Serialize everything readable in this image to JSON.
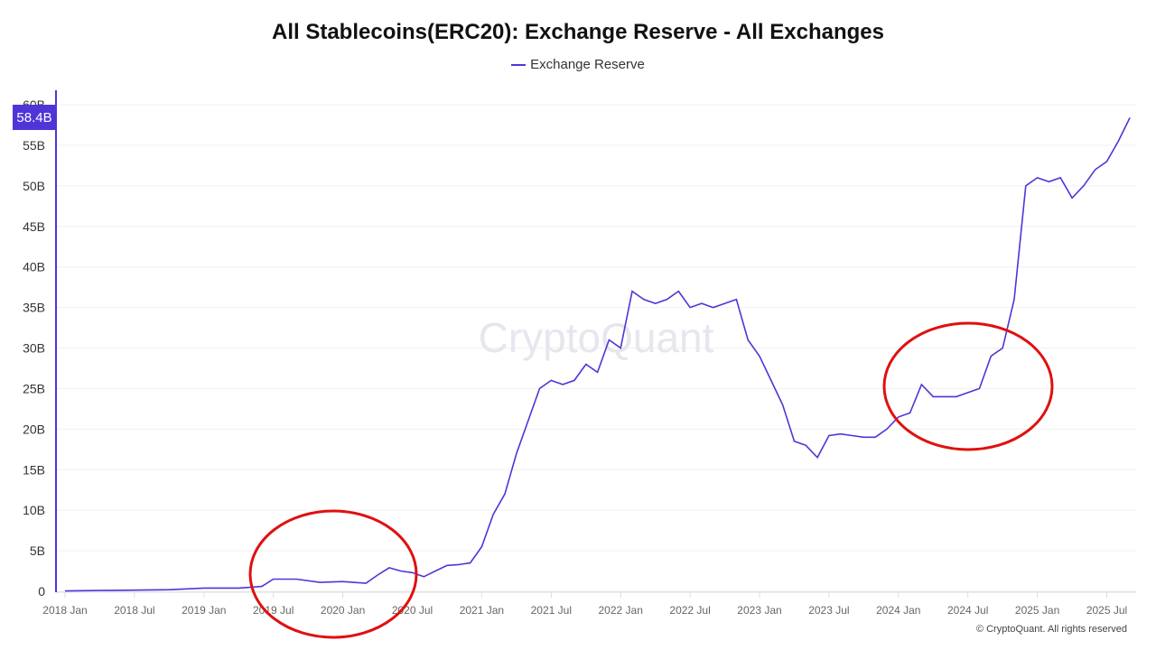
{
  "chart_data": {
    "type": "line",
    "title": "All Stablecoins(ERC20): Exchange Reserve - All Exchanges",
    "xlabel": "",
    "ylabel": "",
    "legend_position": "top-center",
    "grid": true,
    "ylim": [
      0,
      60
    ],
    "y_ticks": [
      "0",
      "5B",
      "10B",
      "15B",
      "20B",
      "25B",
      "30B",
      "35B",
      "40B",
      "45B",
      "50B",
      "55B",
      "60B"
    ],
    "x_ticks": [
      "2018 Jan",
      "2018 Jul",
      "2019 Jan",
      "2019 Jul",
      "2020 Jan",
      "2020 Jul",
      "2021 Jan",
      "2021 Jul",
      "2022 Jan",
      "2022 Jul",
      "2023 Jan",
      "2023 Jul",
      "2024 Jan",
      "2024 Jul",
      "2025 Jan",
      "2025 Jul"
    ],
    "current_value_label": "58.4B",
    "series": [
      {
        "name": "Exchange Reserve",
        "color": "#4f35d8",
        "unit": "B",
        "x": [
          "2018-01",
          "2018-04",
          "2018-07",
          "2018-10",
          "2019-01",
          "2019-04",
          "2019-06",
          "2019-07",
          "2019-09",
          "2019-11",
          "2020-01",
          "2020-03",
          "2020-04",
          "2020-05",
          "2020-06",
          "2020-07",
          "2020-08",
          "2020-09",
          "2020-10",
          "2020-11",
          "2020-12",
          "2021-01",
          "2021-02",
          "2021-03",
          "2021-04",
          "2021-05",
          "2021-06",
          "2021-07",
          "2021-08",
          "2021-09",
          "2021-10",
          "2021-11",
          "2021-12",
          "2022-01",
          "2022-02",
          "2022-03",
          "2022-04",
          "2022-05",
          "2022-06",
          "2022-07",
          "2022-08",
          "2022-09",
          "2022-10",
          "2022-11",
          "2022-12",
          "2023-01",
          "2023-02",
          "2023-03",
          "2023-04",
          "2023-05",
          "2023-06",
          "2023-07",
          "2023-08",
          "2023-09",
          "2023-10",
          "2023-11",
          "2023-12",
          "2024-01",
          "2024-02",
          "2024-03",
          "2024-04",
          "2024-05",
          "2024-06",
          "2024-07",
          "2024-08",
          "2024-09",
          "2024-10",
          "2024-11",
          "2024-12",
          "2025-01",
          "2025-02",
          "2025-03",
          "2025-04",
          "2025-05",
          "2025-06",
          "2025-07",
          "2025-08",
          "2025-09"
        ],
        "values": [
          0.05,
          0.1,
          0.15,
          0.2,
          0.4,
          0.4,
          0.6,
          1.5,
          1.5,
          1.1,
          1.2,
          1.0,
          2.0,
          2.9,
          2.5,
          2.3,
          1.8,
          2.5,
          3.2,
          3.3,
          3.5,
          5.5,
          9.5,
          12,
          17,
          21,
          25,
          26,
          25.5,
          26,
          28,
          27,
          31,
          30,
          37,
          36,
          35.5,
          36,
          37,
          35,
          35.5,
          35,
          35.5,
          36,
          31,
          29,
          26,
          23,
          18.5,
          18,
          16.5,
          19.2,
          19.4,
          19.2,
          19,
          19,
          20,
          21.5,
          22,
          25.5,
          24,
          24,
          24,
          24.5,
          25,
          29,
          30,
          36,
          50,
          51,
          50.5,
          51,
          48.5,
          50,
          52,
          53,
          55.5,
          58.4
        ]
      }
    ]
  },
  "watermark": "CryptoQuant",
  "copyright": "© CryptoQuant. All rights reserved"
}
